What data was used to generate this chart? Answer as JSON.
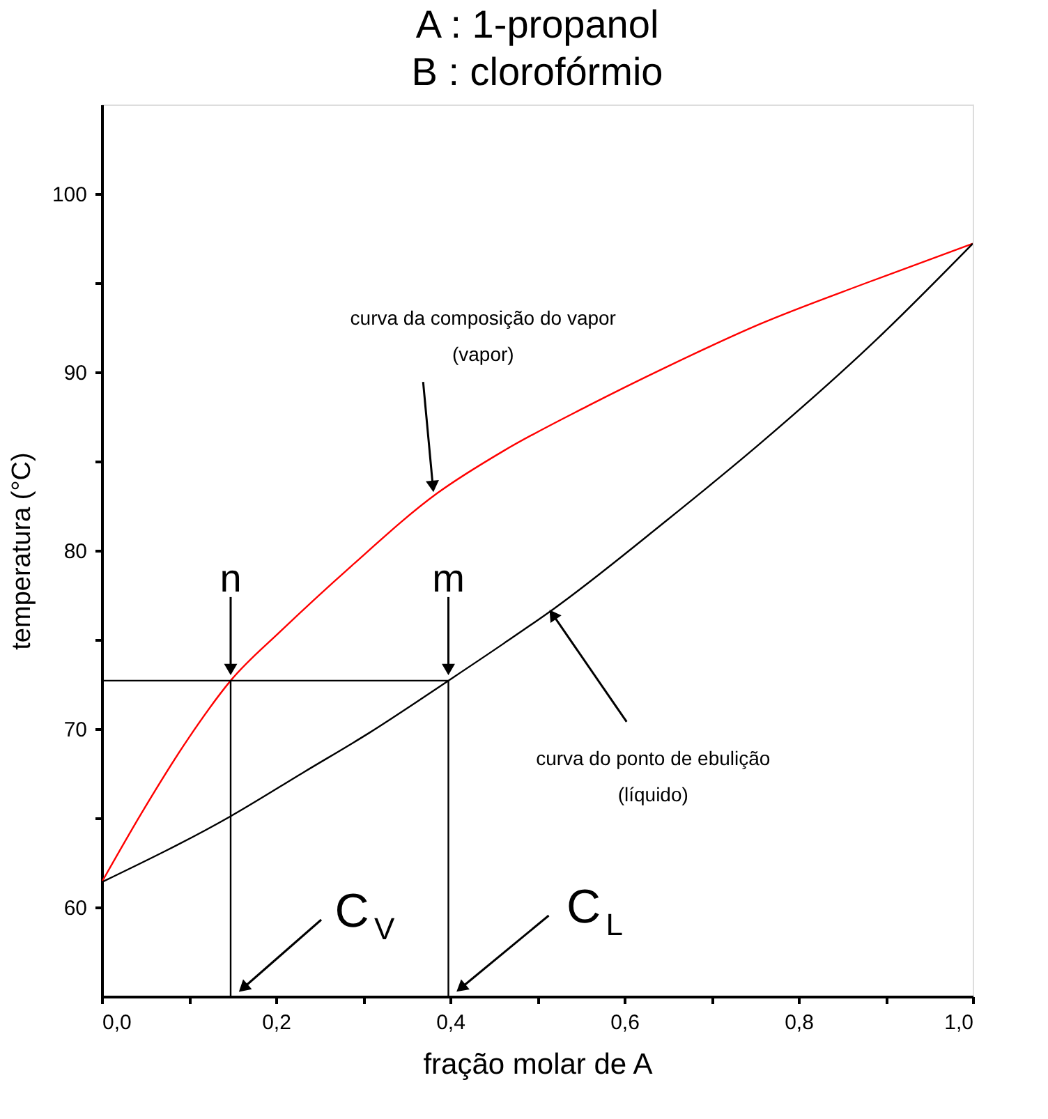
{
  "chart_data": {
    "type": "line",
    "title": "A : 1-propanol",
    "subtitle": "B : clorofórmio",
    "xlabel": "fração molar de A",
    "ylabel": "temperatura (°C)",
    "xlim": [
      0,
      1
    ],
    "ylim": [
      55,
      105
    ],
    "xticks": [
      {
        "value": 0,
        "label": "0,0"
      },
      {
        "value": 0.1,
        "label": null
      },
      {
        "value": 0.2,
        "label": "0,2"
      },
      {
        "value": 0.3,
        "label": null
      },
      {
        "value": 0.4,
        "label": "0,4"
      },
      {
        "value": 0.5,
        "label": null
      },
      {
        "value": 0.6,
        "label": "0,6"
      },
      {
        "value": 0.7,
        "label": null
      },
      {
        "value": 0.8,
        "label": "0,8"
      },
      {
        "value": 0.9,
        "label": null
      },
      {
        "value": 1,
        "label": "1,0"
      }
    ],
    "yticks": [
      60,
      {
        "value": 65,
        "label": null
      },
      70,
      {
        "value": 75,
        "label": null
      },
      80,
      {
        "value": 85,
        "label": null
      },
      90,
      {
        "value": 95,
        "label": null
      },
      100
    ],
    "grid": false,
    "marker": "none",
    "line_style": "solid",
    "series": [
      {
        "color": "#ff0000",
        "x": [
          0,
          0.046,
          0.1,
          0.148,
          0.206,
          0.286,
          0.385,
          0.462,
          0.558,
          0.649,
          0.756,
          0.878,
          1.0
        ],
        "values": [
          61.4,
          65.3,
          69.5,
          72.7,
          75.5,
          79.1,
          83.2,
          85.6,
          88.1,
          90.3,
          92.7,
          95.0,
          97.2
        ]
      },
      {
        "color": "#000000",
        "x": [
          0,
          0.148,
          0.233,
          0.308,
          0.398,
          0.462,
          0.521,
          0.649,
          0.756,
          0.889,
          1.0
        ],
        "values": [
          61.4,
          65.1,
          67.6,
          69.8,
          72.7,
          74.8,
          76.8,
          81.7,
          86.0,
          91.8,
          97.2
        ]
      },
      {
        "color": "#000000",
        "x": [
          0,
          0.398
        ],
        "values": [
          72.7,
          72.7
        ]
      },
      {
        "color": "#000000",
        "x": [
          0.148,
          0.148
        ],
        "values": [
          55,
          72.7
        ]
      },
      {
        "color": "#000000",
        "x": [
          0.398,
          0.398
        ],
        "values": [
          55,
          72.7
        ]
      }
    ],
    "annotations": [
      {
        "text": "curva da composição do vapor\n(vapor)",
        "x": 0.385,
        "y": 83.2
      },
      {
        "text": "curva do ponto de ebulição\n(líquido)",
        "x": 0.521,
        "y": 76.8
      },
      {
        "text": "n",
        "x": 0.148,
        "y": 72.7
      },
      {
        "text": "m",
        "x": 0.398,
        "y": 72.7
      },
      {
        "text": "C$_{V}$",
        "x": 0.148,
        "y": 55
      },
      {
        "text": "C$_{L}$",
        "x": 0.398,
        "y": 55
      }
    ]
  }
}
